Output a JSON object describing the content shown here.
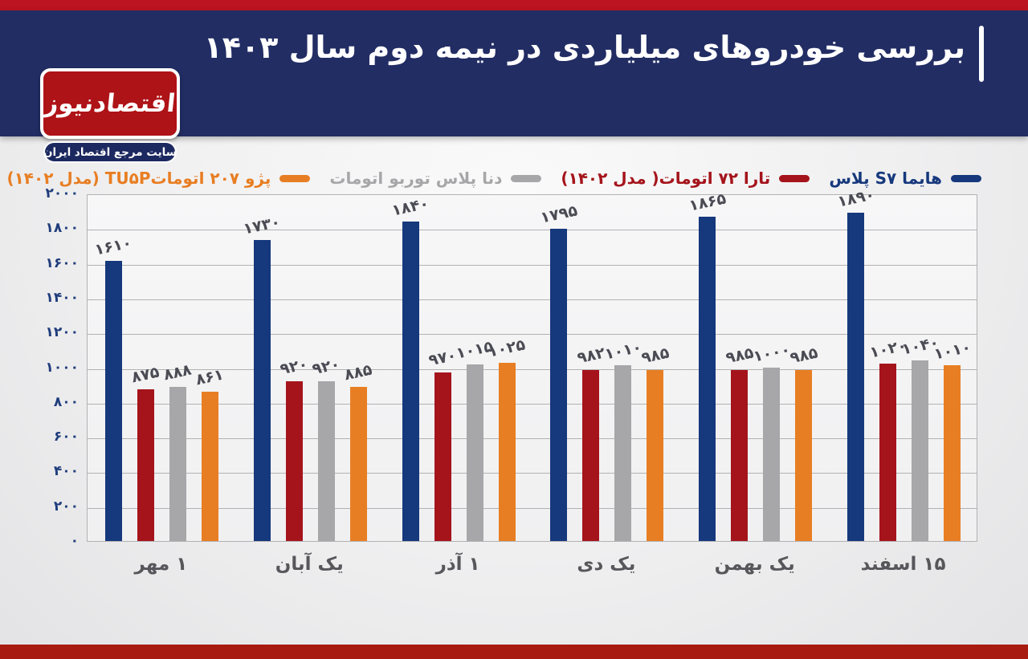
{
  "header": {
    "title": "بررسی خودروهای میلیاردی در نیمه دوم سال ۱۴۰۳"
  },
  "logo": {
    "name": "اقتصادنیوز",
    "tagline": "سایت مرجع اقتصاد ایران"
  },
  "colors": {
    "top_strip": "#bc1420",
    "header_navy": "#222d64",
    "logo_red": "#ae1317",
    "pill_navy": "#1c2960",
    "bottom_strip": "#a81b10",
    "series_blue": "#16387c",
    "series_red": "#a5141b",
    "series_gray": "#a7a7a9",
    "series_orange": "#e87e23"
  },
  "chart_data": {
    "type": "bar",
    "categories": [
      "۱ مهر",
      "یک آبان",
      "۱ آذر",
      "یک دی",
      "یک بهمن",
      "۱۵ اسفند"
    ],
    "series": [
      {
        "name": "هایما S۷ پلاس",
        "color": "#16387c",
        "values": [
          1610,
          1730,
          1840,
          1795,
          1865,
          1890
        ]
      },
      {
        "name": "تارا ۷۲ اتومات( مدل ۱۴۰۲)",
        "color": "#a5141b",
        "values": [
          875,
          920,
          970,
          982,
          985,
          1020
        ]
      },
      {
        "name": "دنا پلاس توربو اتومات",
        "color": "#a7a7a9",
        "values": [
          888,
          920,
          1015,
          1010,
          1000,
          1040
        ]
      },
      {
        "name": "پژو ۲۰۷  اتوماتTU۵P (مدل ۱۴۰۲)",
        "color": "#e87e23",
        "values": [
          861,
          885,
          1025,
          985,
          985,
          1010
        ]
      }
    ],
    "ylim": [
      0,
      2000
    ],
    "ytick_step": 200,
    "grid": true,
    "legend_position": "top",
    "value_labels": true,
    "numeral_system": "persian"
  }
}
